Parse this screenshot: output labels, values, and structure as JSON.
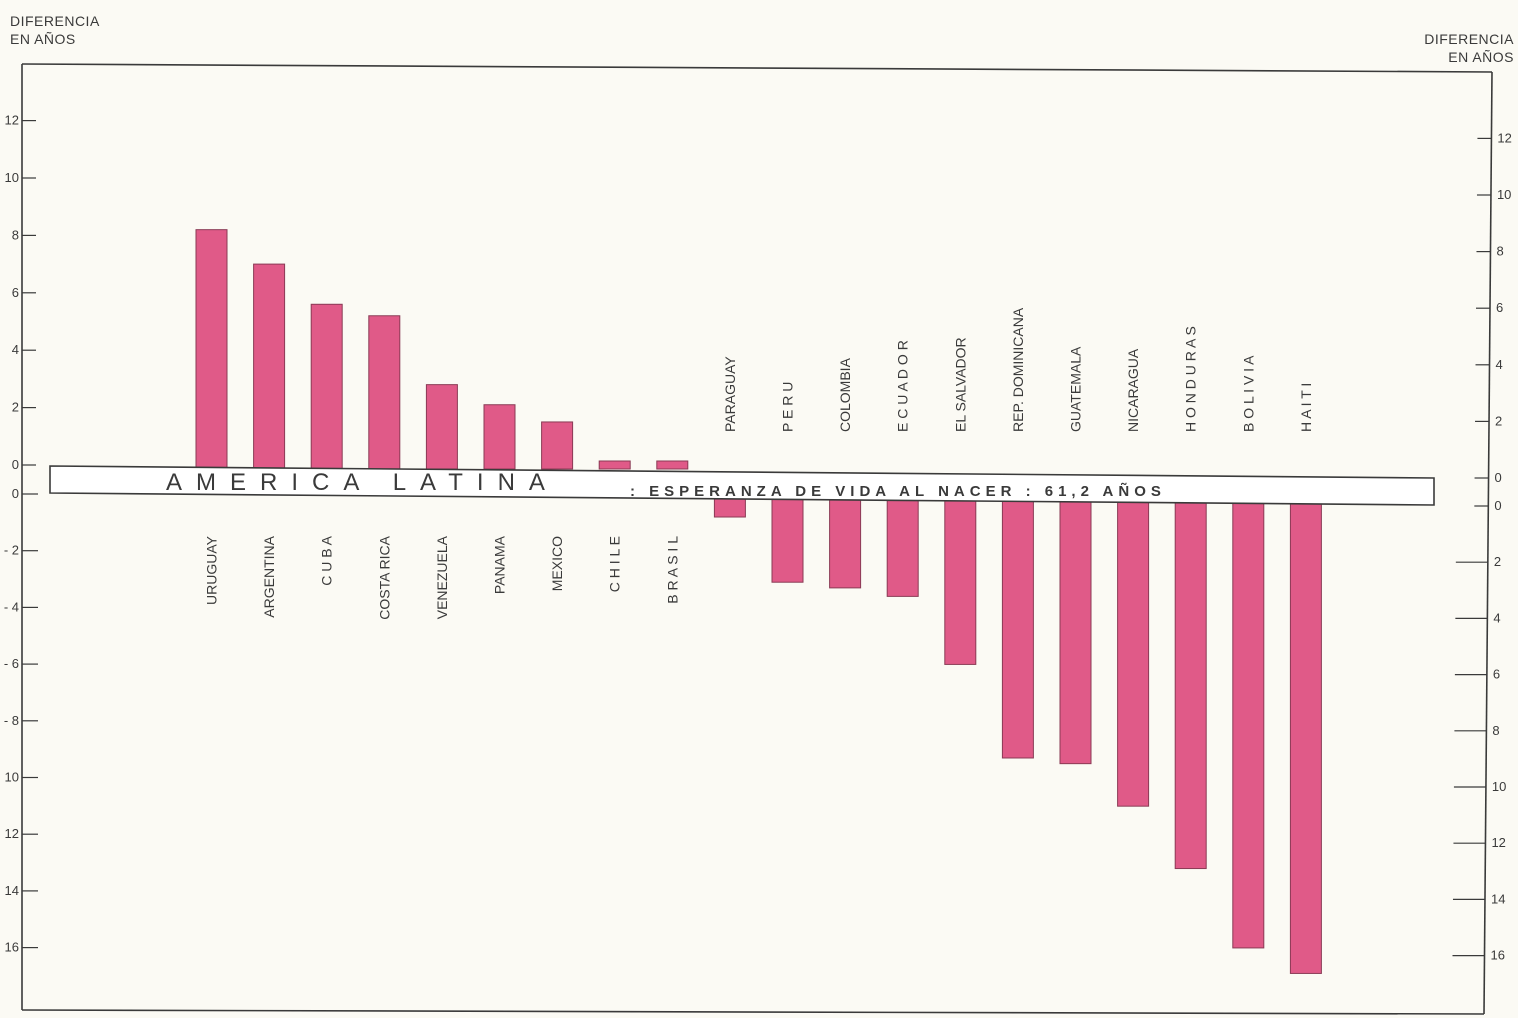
{
  "chart_data": {
    "type": "bar",
    "title": "AMERICA LATINA",
    "subtitle": ": ESPERANZA DE VIDA AL NACER : 61,2 AÑOS",
    "ylabel_left": "DIFERENCIA EN AÑOS",
    "ylabel_right": "DIFERENCIA EN AÑOS",
    "ylim": [
      -17,
      12
    ],
    "upper_ticks": [
      "0",
      "2",
      "4",
      "6",
      "8",
      "10",
      "12"
    ],
    "lower_ticks_left": [
      "0",
      "- 2",
      "- 4",
      "- 6",
      "- 8",
      "10",
      "12",
      "14",
      "16"
    ],
    "lower_ticks_right": [
      "0",
      "2",
      "4",
      "6",
      "8",
      "10",
      "12",
      "14",
      "16"
    ],
    "categories": [
      "URUGUAY",
      "ARGENTINA",
      "C U B A",
      "COSTA RICA",
      "VENEZUELA",
      "PANAMA",
      "MEXICO",
      "C H I L E",
      "B R A S I L",
      "PARAGUAY",
      "P E R U",
      "COLOMBIA",
      "E C U A D O R",
      "EL SALVADOR",
      "REP. DOMINICANA",
      "GUATEMALA",
      "NICARAGUA",
      "H O N D U R A S",
      "B O L I V I A",
      "H A I T I"
    ],
    "values": [
      8.2,
      7.0,
      5.6,
      5.2,
      2.8,
      2.1,
      1.5,
      0.1,
      0.0,
      -0.6,
      -2.9,
      -3.1,
      -3.4,
      -5.8,
      -9.1,
      -9.3,
      -10.8,
      -13.0,
      -15.8,
      -16.7
    ],
    "color": "#e05a88",
    "grid": false,
    "legend": "none"
  }
}
